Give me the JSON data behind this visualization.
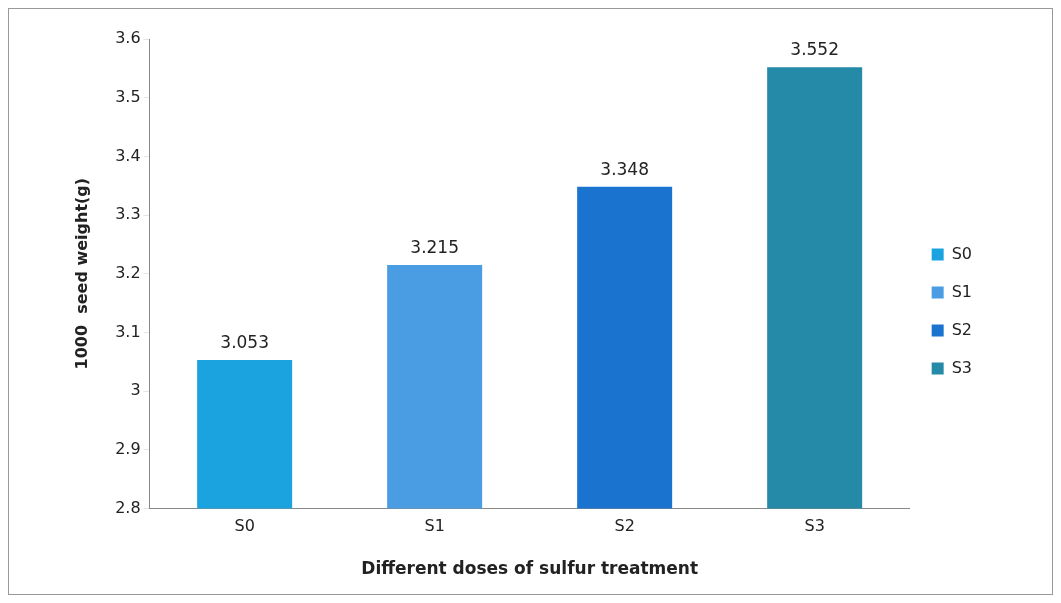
{
  "chart_data": {
    "type": "bar",
    "xlabel": "Different doses of sulfur treatment",
    "ylabel": "1000  seed weight(g)",
    "categories": [
      "S0",
      "S1",
      "S2",
      "S3"
    ],
    "series": [
      {
        "name": "S0",
        "color": "#1aa3df",
        "values": [
          3.053,
          null,
          null,
          null
        ]
      },
      {
        "name": "S1",
        "color": "#4a9de2",
        "values": [
          null,
          3.215,
          null,
          null
        ]
      },
      {
        "name": "S2",
        "color": "#1a74cf",
        "values": [
          null,
          null,
          3.348,
          null
        ]
      },
      {
        "name": "S3",
        "color": "#2589a8",
        "values": [
          null,
          null,
          null,
          3.552
        ]
      }
    ],
    "ylim": [
      2.8,
      3.6
    ],
    "yticks": [
      2.8,
      2.9,
      3,
      3.1,
      3.2,
      3.3,
      3.4,
      3.5,
      3.6
    ],
    "grid": false,
    "legend": "right",
    "data_labels": true
  }
}
